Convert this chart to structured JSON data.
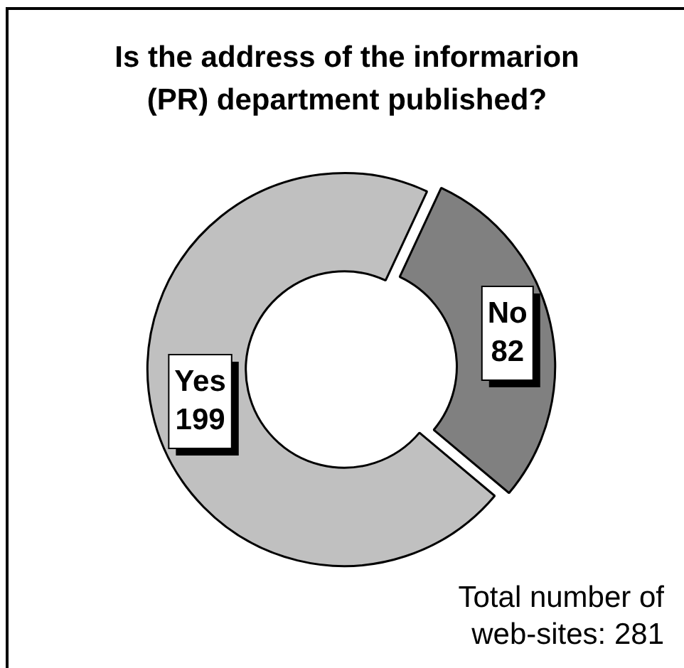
{
  "chart_data": {
    "type": "donut",
    "title": "Is the address of the informarion (PR) department published?",
    "categories": [
      "Yes",
      "No"
    ],
    "values": [
      199,
      82
    ],
    "colors": [
      "#c0c0c0",
      "#808080"
    ],
    "data_labels": true,
    "annotations": [
      "Total number of web-sites: 281"
    ]
  }
}
